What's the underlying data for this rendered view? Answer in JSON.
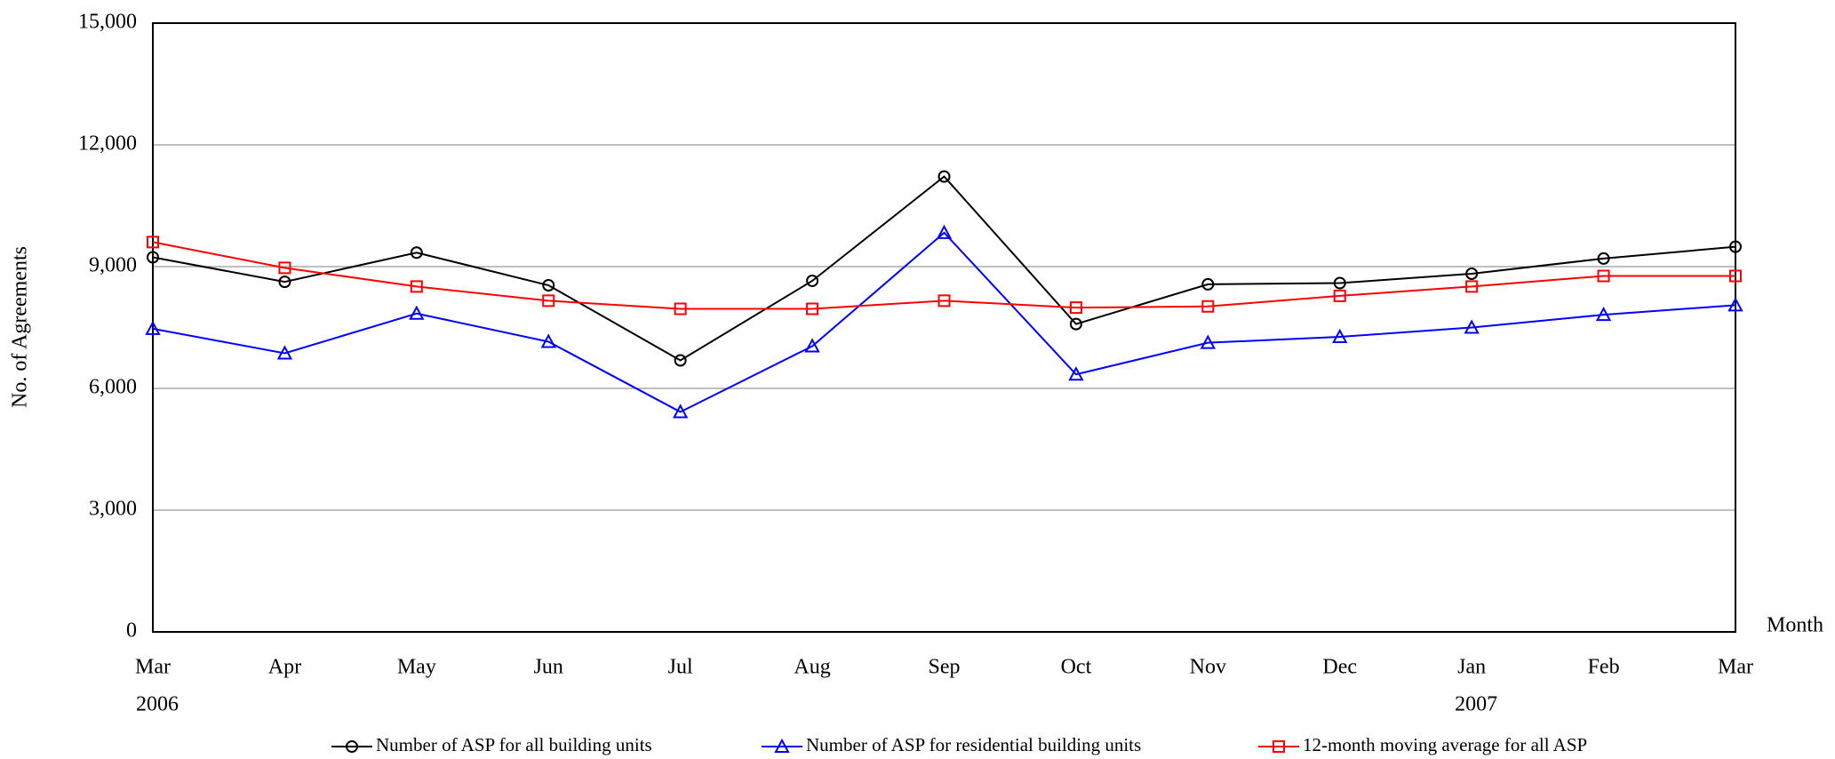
{
  "chart_data": {
    "type": "line",
    "y_label": "No. of Agreements",
    "x_label": "Month",
    "categories": [
      "Mar",
      "Apr",
      "May",
      "Jun",
      "Jul",
      "Aug",
      "Sep",
      "Oct",
      "Nov",
      "Dec",
      "Jan",
      "Feb",
      "Mar"
    ],
    "x_year_labels": [
      "2006",
      null,
      null,
      null,
      null,
      null,
      null,
      null,
      null,
      null,
      "2007",
      null,
      null
    ],
    "ylim": [
      0,
      15000
    ],
    "yticks": [
      0,
      {
        "value": 3000,
        "label": "3,000"
      },
      {
        "value": 6000,
        "label": "6,000"
      },
      {
        "value": 9000,
        "label": "9,000"
      },
      {
        "value": 12000,
        "label": "12,000"
      },
      {
        "value": 15000,
        "label": "15,000"
      }
    ],
    "grid": true,
    "series": [
      {
        "name": "Number of ASP for all building units",
        "color": "#000000",
        "marker": "circle",
        "values": [
          9230,
          8625,
          9345,
          8540,
          6690,
          8650,
          11220,
          7585,
          8565,
          8595,
          8825,
          9200,
          9490
        ]
      },
      {
        "name": "Number of ASP for residential building units",
        "color": "#0000ff",
        "marker": "triangle",
        "values": [
          7470,
          6865,
          7845,
          7150,
          5420,
          7040,
          9835,
          6345,
          7125,
          7270,
          7500,
          7815,
          8050
        ]
      },
      {
        "name": "12-month moving average for all ASP",
        "color": "#ff0000",
        "marker": "square",
        "values": [
          9605,
          8970,
          8510,
          8160,
          7960,
          7960,
          8160,
          7990,
          8020,
          8280,
          8510,
          8770,
          8770
        ]
      }
    ]
  }
}
